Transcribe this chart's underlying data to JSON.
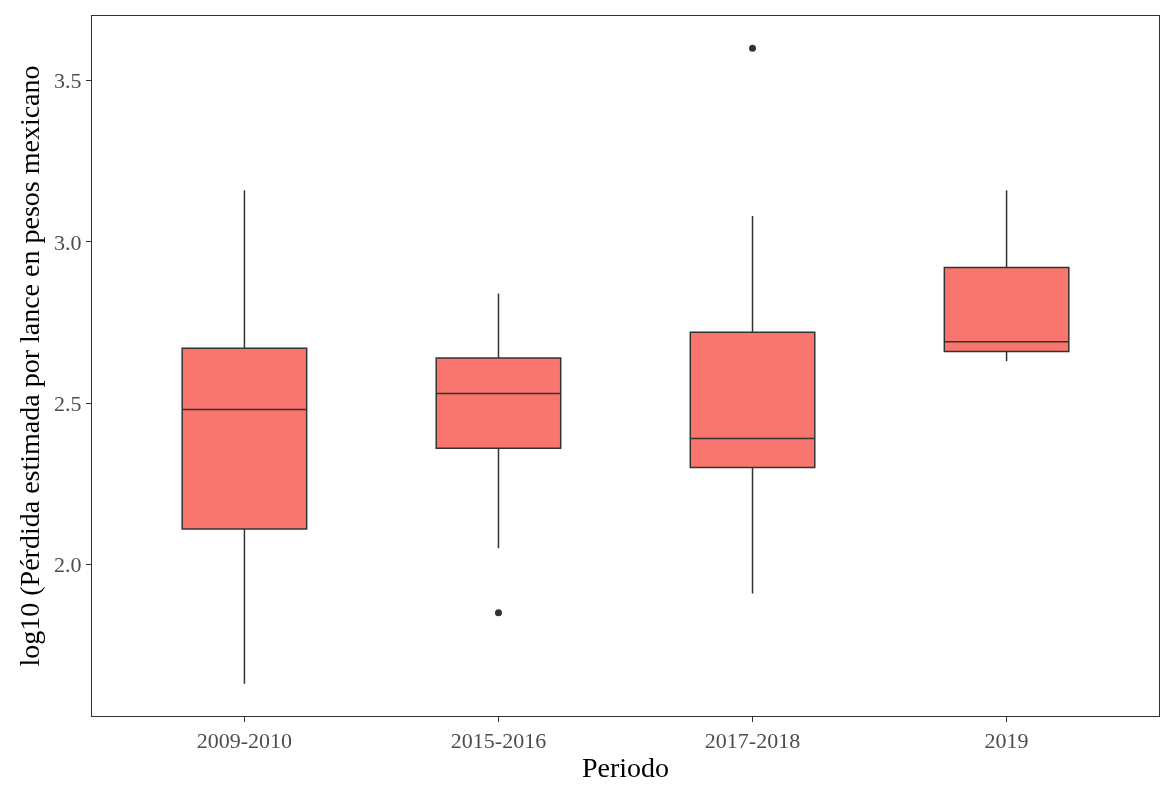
{
  "chart_data": {
    "type": "box",
    "xlabel": "Periodo",
    "ylabel": "log10 (Pérdida estimada por lance en pesos mexicano",
    "categories": [
      "2009-2010",
      "2015-2016",
      "2017-2018",
      "2019"
    ],
    "boxes": [
      {
        "low": 1.63,
        "q1": 2.11,
        "median": 2.48,
        "q3": 2.67,
        "high": 3.16
      },
      {
        "low": 2.05,
        "q1": 2.36,
        "median": 2.53,
        "q3": 2.64,
        "high": 2.84,
        "outliers": [
          1.85
        ]
      },
      {
        "low": 1.91,
        "q1": 2.3,
        "median": 2.39,
        "q3": 2.72,
        "high": 3.08,
        "outliers": [
          3.6
        ]
      },
      {
        "low": 2.63,
        "q1": 2.66,
        "median": 2.69,
        "q3": 2.92,
        "high": 3.16
      }
    ],
    "color": "#f8766d",
    "ylim": [
      1.53,
      3.7
    ],
    "yticks": [
      {
        "value": 2,
        "label": "2.0"
      },
      2.5,
      {
        "value": 3,
        "label": "3.0"
      },
      3.5
    ],
    "grid": false,
    "legend": false
  }
}
